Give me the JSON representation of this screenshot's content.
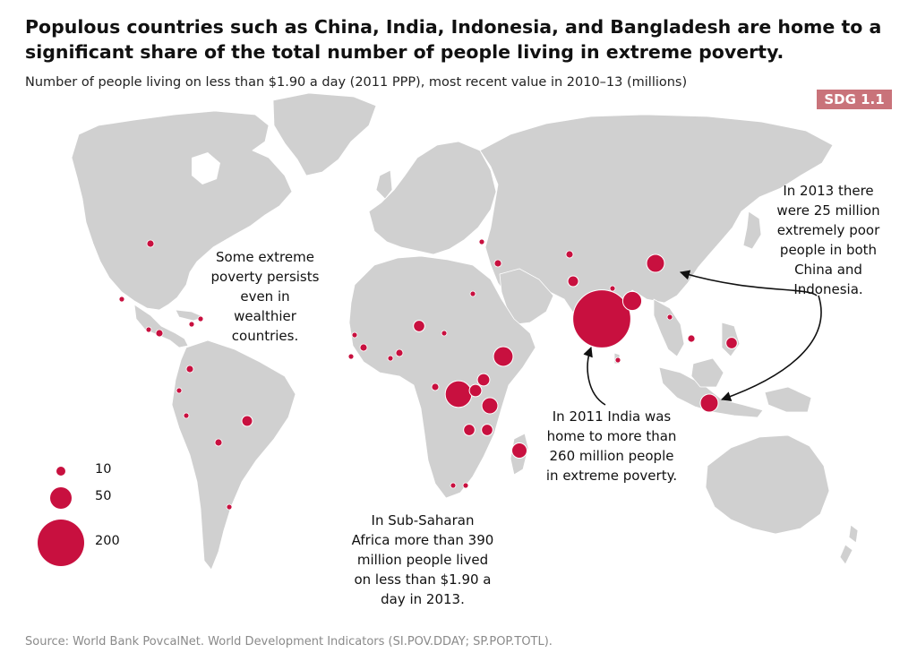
{
  "header": {
    "title": "Populous countries such as China, India, Indonesia, and Bangladesh are home to a significant share of the total number of people living in extreme poverty.",
    "subtitle": "Number of people living on less than $1.90 a day (2011 PPP), most recent value in 2010–13 (millions)",
    "badge": "SDG 1.1"
  },
  "colors": {
    "land": "#d0d0d0",
    "ocean": "#ffffff",
    "bubble": "#c8103f",
    "badge": "#c9737a",
    "source_text": "#8a8a8a"
  },
  "annotations": {
    "wealthy": "Some extreme poverty persists even in wealthier countries.",
    "china_indonesia": "In 2013 there were 25 million extremely poor people in both China and Indonesia.",
    "india": "In 2011 India was home to more than 260 million people in extreme poverty.",
    "africa": "In Sub-Saharan Africa more than 390 million people lived on less than $1.90 a day in 2013."
  },
  "legend": {
    "items": [
      {
        "value": 10,
        "label": "10"
      },
      {
        "value": 50,
        "label": "50"
      },
      {
        "value": 200,
        "label": "200"
      }
    ]
  },
  "map_points": [
    {
      "region": "India",
      "value": 262
    },
    {
      "region": "Nigeria",
      "value": 10
    },
    {
      "region": "Democratic Republic of Congo",
      "value": 55
    },
    {
      "region": "Ethiopia",
      "value": 30
    },
    {
      "region": "Bangladesh",
      "value": 28
    },
    {
      "region": "China",
      "value": 25
    },
    {
      "region": "Indonesia",
      "value": 25
    },
    {
      "region": "Tanzania",
      "value": 20
    },
    {
      "region": "Madagascar",
      "value": 18
    },
    {
      "region": "Kenya",
      "value": 12
    },
    {
      "region": "Uganda",
      "value": 12
    },
    {
      "region": "Pakistan",
      "value": 9
    },
    {
      "region": "Brazil",
      "value": 9
    },
    {
      "region": "Mozambique",
      "value": 10
    },
    {
      "region": "Philippines",
      "value": 10
    },
    {
      "region": "Malawi",
      "value": 10
    }
  ],
  "source": "Source: World Bank PovcalNet. World Development Indicators (SI.POV.DDAY; SP.POP.TOTL)."
}
